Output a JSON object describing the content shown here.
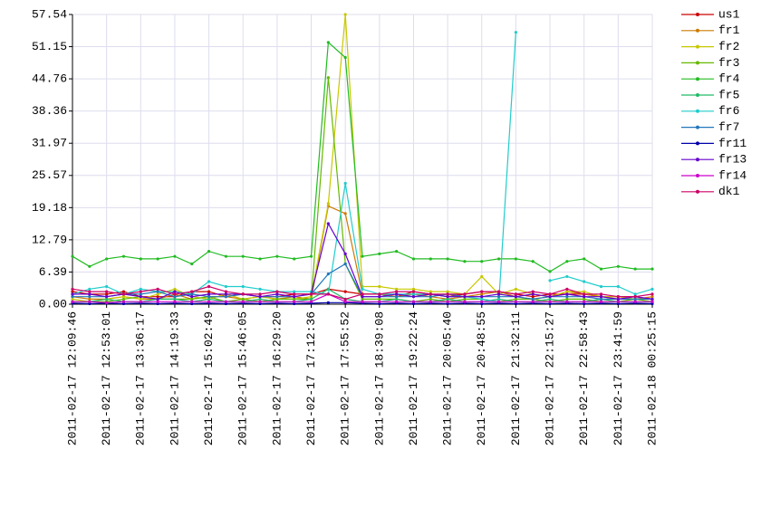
{
  "chart_data": {
    "type": "line",
    "categories": [
      "2011-02-17 12:09:46",
      null,
      "2011-02-17 12:53:01",
      null,
      "2011-02-17 13:36:17",
      null,
      "2011-02-17 14:19:33",
      null,
      "2011-02-17 15:02:49",
      null,
      "2011-02-17 15:46:05",
      null,
      "2011-02-17 16:29:20",
      null,
      "2011-02-17 17:12:36",
      null,
      "2011-02-17 17:55:52",
      null,
      "2011-02-17 18:39:08",
      null,
      "2011-02-17 19:22:24",
      null,
      "2011-02-17 20:05:40",
      null,
      "2011-02-17 20:48:55",
      null,
      "2011-02-17 21:32:11",
      null,
      "2011-02-17 22:15:27",
      null,
      "2011-02-17 22:58:43",
      null,
      "2011-02-17 23:41:59",
      null,
      "2011-02-18 00:25:15"
    ],
    "ylim": [
      0,
      57.54
    ],
    "yticks": [
      {
        "value": 0,
        "label": "0.00"
      },
      6.39,
      12.79,
      19.18,
      25.57,
      31.97,
      38.36,
      44.76,
      51.15,
      57.54
    ],
    "grid": true,
    "legend": "right",
    "series": [
      {
        "name": "us1",
        "color": "#cc0000",
        "values": [
          2.5,
          2,
          2,
          2.5,
          1.5,
          1.5,
          1.5,
          2.5,
          2.5,
          1.5,
          2,
          1.5,
          1.5,
          2,
          2,
          3,
          2.5,
          2,
          2,
          1.5,
          2.5,
          2,
          1.5,
          2,
          2.5,
          2.5,
          2,
          1.5,
          2,
          2,
          2,
          1.5,
          1.5,
          1.5,
          1
        ]
      },
      {
        "name": "fr1",
        "color": "#cc7a00",
        "values": [
          1.5,
          1,
          1,
          1.5,
          1,
          1,
          2,
          1,
          1.5,
          1.5,
          1,
          1.5,
          1,
          1.5,
          1,
          19.5,
          18,
          2,
          2,
          1.5,
          2,
          1.5,
          1,
          1.5,
          2,
          2.5,
          1.5,
          1,
          1.5,
          2.5,
          2,
          1.5,
          1,
          1,
          1.5
        ]
      },
      {
        "name": "fr2",
        "color": "#c8c800",
        "values": [
          1,
          0.5,
          1,
          1.5,
          1,
          2,
          3,
          1.5,
          1,
          2,
          1,
          1.5,
          1,
          1,
          1.5,
          20,
          57.54,
          3.5,
          3.5,
          3,
          3,
          2.5,
          2.5,
          2,
          5.5,
          2,
          3,
          2,
          1.5,
          2.5,
          2.5,
          1.5,
          1.5,
          1,
          1
        ]
      },
      {
        "name": "fr3",
        "color": "#66b800",
        "values": [
          0.5,
          0.5,
          0.5,
          1,
          1.5,
          1,
          1,
          1,
          1.5,
          0.5,
          1,
          0.5,
          1,
          1,
          1,
          45,
          8,
          1,
          1,
          1,
          0.5,
          1,
          0.5,
          1,
          1,
          0.5,
          1,
          1,
          0.5,
          1,
          1,
          0.5,
          0.5,
          1,
          0.5
        ]
      },
      {
        "name": "fr4",
        "color": "#22bb22",
        "values": [
          9.5,
          7.5,
          9,
          9.5,
          9,
          9,
          9.5,
          8,
          10.5,
          9.5,
          9.5,
          9,
          9.5,
          9,
          9.5,
          52,
          49,
          9.5,
          10,
          10.5,
          9,
          9,
          9,
          8.5,
          8.5,
          9,
          9,
          8.5,
          6.5,
          8.5,
          9,
          7,
          7.5,
          7,
          7
        ]
      },
      {
        "name": "fr5",
        "color": "#22bb66",
        "values": [
          0.5,
          0.5,
          1,
          0.5,
          0.5,
          1,
          1,
          0.5,
          1,
          0.5,
          0.5,
          1,
          0.5,
          0.5,
          1,
          3,
          1,
          0.5,
          0.5,
          1,
          0.5,
          0.5,
          1,
          0.5,
          0.5,
          1,
          0.5,
          0.5,
          1,
          0.5,
          0.5,
          1,
          0.5,
          0.5,
          0.5
        ]
      },
      {
        "name": "fr6",
        "color": "#22cccc",
        "values": [
          2,
          3,
          3.5,
          2,
          3,
          2.5,
          2.5,
          2,
          4.5,
          3.5,
          3.5,
          3,
          2.5,
          2.5,
          2.5,
          2,
          24,
          3,
          2,
          2,
          2,
          2,
          1.5,
          1.5,
          1,
          0.5,
          54,
          null,
          4.7,
          5.5,
          4.5,
          3.5,
          3.5,
          2,
          3
        ]
      },
      {
        "name": "fr7",
        "color": "#2277bb",
        "values": [
          1.5,
          1.5,
          1.5,
          2,
          2,
          2.5,
          1.5,
          2,
          1.5,
          1.5,
          2,
          1.5,
          1.5,
          1.5,
          2,
          6,
          8,
          1.5,
          1.5,
          1.5,
          1.5,
          1.5,
          2,
          1.5,
          1.5,
          1.5,
          1.5,
          1,
          1.5,
          1.5,
          1.5,
          1,
          1,
          1,
          1
        ]
      },
      {
        "name": "fr11",
        "color": "#0000aa",
        "values": [
          0.2,
          0.1,
          0.2,
          0.1,
          0.2,
          0.1,
          0.2,
          0.1,
          0.2,
          0.1,
          0.2,
          0.1,
          0.2,
          0.1,
          0.2,
          0.3,
          0.3,
          0.2,
          0.1,
          0.2,
          0.1,
          0.2,
          0.1,
          0.2,
          0.1,
          0.2,
          0.1,
          0.2,
          0.1,
          0.2,
          0.1,
          0.2,
          0.1,
          0.2,
          0.1
        ]
      },
      {
        "name": "fr13",
        "color": "#6600cc",
        "values": [
          2,
          2,
          1.5,
          2,
          1.5,
          1,
          2.5,
          1.5,
          2,
          2,
          2,
          1.5,
          2,
          1.5,
          2,
          16,
          10,
          1.5,
          1.5,
          2,
          1.5,
          2,
          1.5,
          1.5,
          1.5,
          2,
          1.5,
          2,
          1.5,
          2,
          1.5,
          1.5,
          1,
          1.5,
          1
        ]
      },
      {
        "name": "fr14",
        "color": "#cc00cc",
        "values": [
          0.5,
          0.5,
          0.3,
          0.5,
          0.5,
          0.5,
          0.5,
          0.5,
          0.5,
          0.5,
          0.5,
          0.5,
          0.5,
          0.5,
          0.5,
          2,
          0.5,
          0.5,
          0.5,
          0.5,
          0.5,
          0.5,
          0.5,
          0.5,
          0.5,
          0.5,
          0.5,
          0.5,
          0.5,
          0.5,
          0.5,
          0.5,
          0.5,
          0.5,
          0.5
        ]
      },
      {
        "name": "dk1",
        "color": "#cc0066",
        "values": [
          3,
          2.5,
          2.5,
          2,
          2.5,
          3,
          2,
          2.5,
          3.5,
          2.5,
          2,
          2,
          2.5,
          2,
          2,
          2,
          1,
          2,
          2,
          2.5,
          2.5,
          2,
          2,
          2,
          2.5,
          2.5,
          2,
          2.5,
          2,
          3,
          2,
          2,
          1.5,
          1.5,
          2
        ]
      }
    ]
  }
}
